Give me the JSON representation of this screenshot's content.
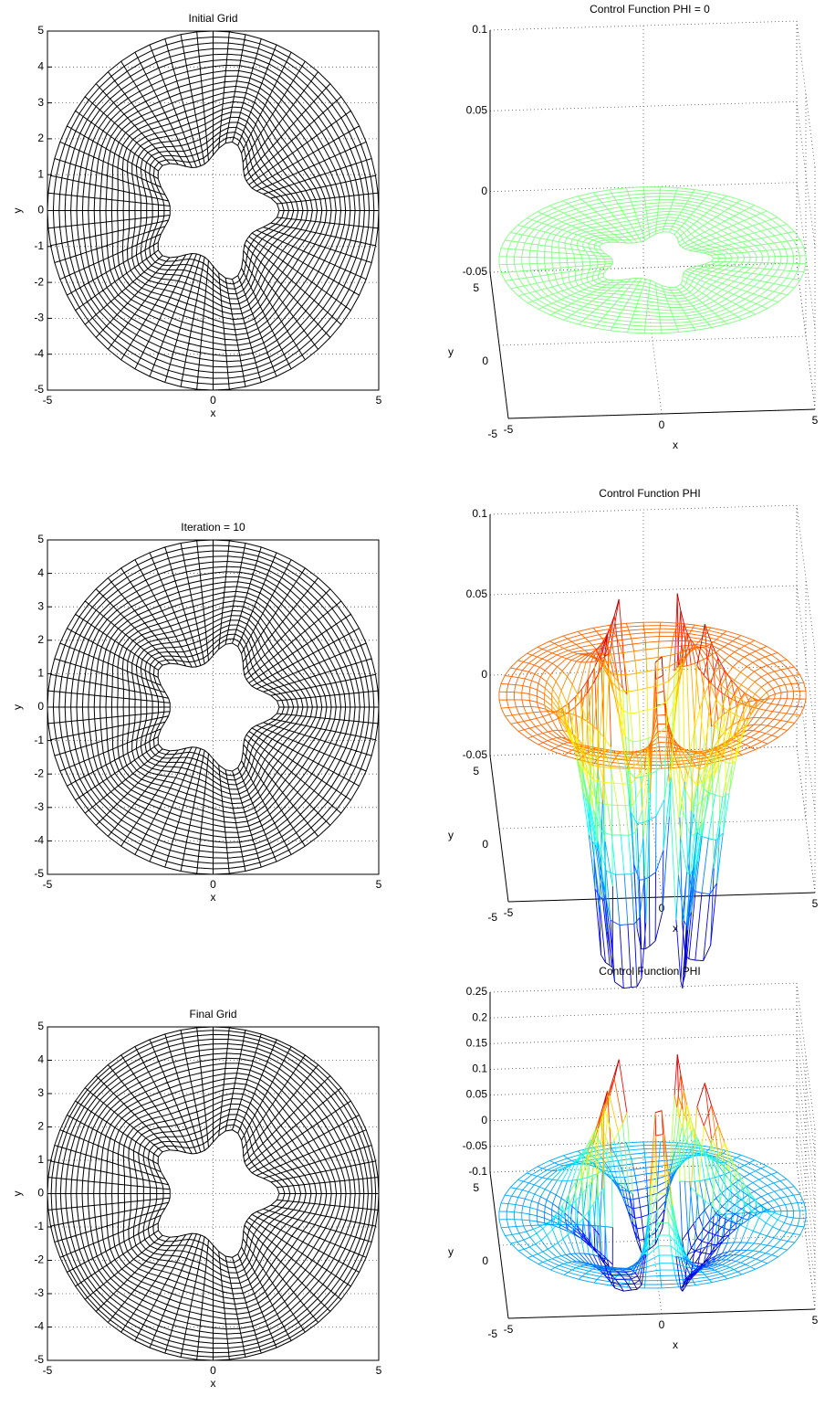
{
  "chart_data": [
    {
      "type": "mesh",
      "title": "Initial Grid",
      "xlabel": "x",
      "ylabel": "y",
      "xlim": [
        -5,
        5
      ],
      "ylim": [
        -5,
        5
      ],
      "xticks": [
        -5,
        0,
        5
      ],
      "yticks": [
        -5,
        -4,
        -3,
        -2,
        -1,
        0,
        1,
        2,
        3,
        4,
        5
      ],
      "grid": true,
      "color": "#000000"
    },
    {
      "type": "surface",
      "title": "Control Function PHI = 0",
      "xlabel": "x",
      "ylabel": "y",
      "xlim": [
        -5,
        5
      ],
      "ylim": [
        -5,
        5
      ],
      "zlim": [
        -0.05,
        0.1
      ],
      "xticks": [
        -5,
        0,
        5
      ],
      "yticks": [
        -5,
        0,
        5
      ],
      "zticks": [
        -0.05,
        0,
        0.05,
        0.1
      ],
      "grid": true,
      "color": "#80ff80"
    },
    {
      "type": "mesh",
      "title": "Iteration = 10",
      "xlabel": "x",
      "ylabel": "y",
      "xlim": [
        -5,
        5
      ],
      "ylim": [
        -5,
        5
      ],
      "xticks": [
        -5,
        0,
        5
      ],
      "yticks": [
        -5,
        -4,
        -3,
        -2,
        -1,
        0,
        1,
        2,
        3,
        4,
        5
      ],
      "grid": true,
      "color": "#000000"
    },
    {
      "type": "surface",
      "title": "Control Function PHI",
      "xlabel": "x",
      "ylabel": "y",
      "xlim": [
        -5,
        5
      ],
      "ylim": [
        -5,
        5
      ],
      "zlim": [
        -0.05,
        0.1
      ],
      "xticks": [
        -5,
        0,
        5
      ],
      "yticks": [
        -5,
        0,
        5
      ],
      "zticks": [
        -0.05,
        0,
        0.05,
        0.1
      ],
      "grid": true,
      "colormap": "jet"
    },
    {
      "type": "mesh",
      "title": "Final Grid",
      "xlabel": "x",
      "ylabel": "y",
      "xlim": [
        -5,
        5
      ],
      "ylim": [
        -5,
        5
      ],
      "xticks": [
        -5,
        0,
        5
      ],
      "yticks": [
        -5,
        -4,
        -3,
        -2,
        -1,
        0,
        1,
        2,
        3,
        4,
        5
      ],
      "grid": true,
      "color": "#000000"
    },
    {
      "type": "surface",
      "title": "Control Function PHI",
      "xlabel": "x",
      "ylabel": "y",
      "xlim": [
        -5,
        5
      ],
      "ylim": [
        -5,
        5
      ],
      "zlim": [
        -0.1,
        0.25
      ],
      "xticks": [
        -5,
        0,
        5
      ],
      "yticks": [
        -5,
        0,
        5
      ],
      "zticks": [
        -0.1,
        -0.05,
        0,
        0.05,
        0.1,
        0.15,
        0.2,
        0.25
      ],
      "grid": true,
      "colormap": "jet"
    }
  ]
}
